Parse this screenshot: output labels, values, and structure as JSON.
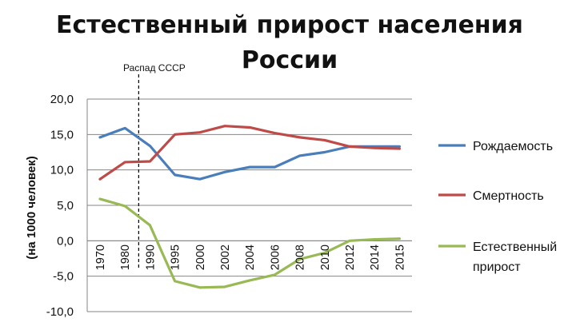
{
  "chart_data": {
    "type": "line",
    "title_lines": [
      "Естественный прирост населения",
      "России"
    ],
    "ylabel": "(на 1000 человек)",
    "xlabel": "",
    "categories": [
      "1970",
      "1980",
      "1990",
      "1995",
      "2000",
      "2002",
      "2004",
      "2006",
      "2008",
      "2010",
      "2012",
      "2014",
      "2015"
    ],
    "ylim": [
      -10,
      20
    ],
    "yticks": [
      "20,0",
      "15,0",
      "10,0",
      "5,0",
      "0,0",
      "-5,0",
      "-10,0"
    ],
    "grid": true,
    "legend_position": "right",
    "annotation": {
      "text": "Распад СССР"
    },
    "series": [
      {
        "name": "Рождаемость",
        "color": "#4a7ebb",
        "values": [
          14.6,
          15.9,
          13.4,
          9.3,
          8.7,
          9.7,
          10.4,
          10.4,
          12.0,
          12.5,
          13.3,
          13.3,
          13.3
        ]
      },
      {
        "name": "Смертность",
        "color": "#be4b48",
        "values": [
          8.7,
          11.1,
          11.2,
          15.0,
          15.3,
          16.2,
          16.0,
          15.2,
          14.6,
          14.2,
          13.3,
          13.1,
          13.0
        ]
      },
      {
        "name": "Естественный прирост",
        "color": "#98b954",
        "values": [
          5.9,
          4.9,
          2.2,
          -5.7,
          -6.6,
          -6.5,
          -5.6,
          -4.8,
          -2.6,
          -1.7,
          0.0,
          0.2,
          0.3
        ]
      }
    ]
  }
}
